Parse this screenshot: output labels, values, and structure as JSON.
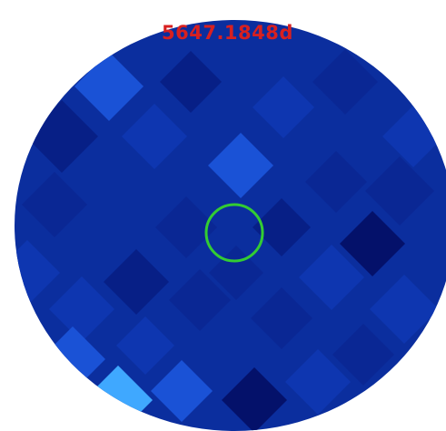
{
  "timestamp_label": "5647.1848d",
  "colors": {
    "background": "#ffffff",
    "field_base": "#0b2e9e",
    "target_circle": "#33cc33",
    "timestamp_text": "#d82020",
    "cell_palette": {
      "darkest": "#04116a",
      "dark": "#071f86",
      "mid_dark": "#0a2794",
      "mid": "#0e36b0",
      "bright": "#1a52d6",
      "brightest": "#3fa8ff"
    }
  }
}
